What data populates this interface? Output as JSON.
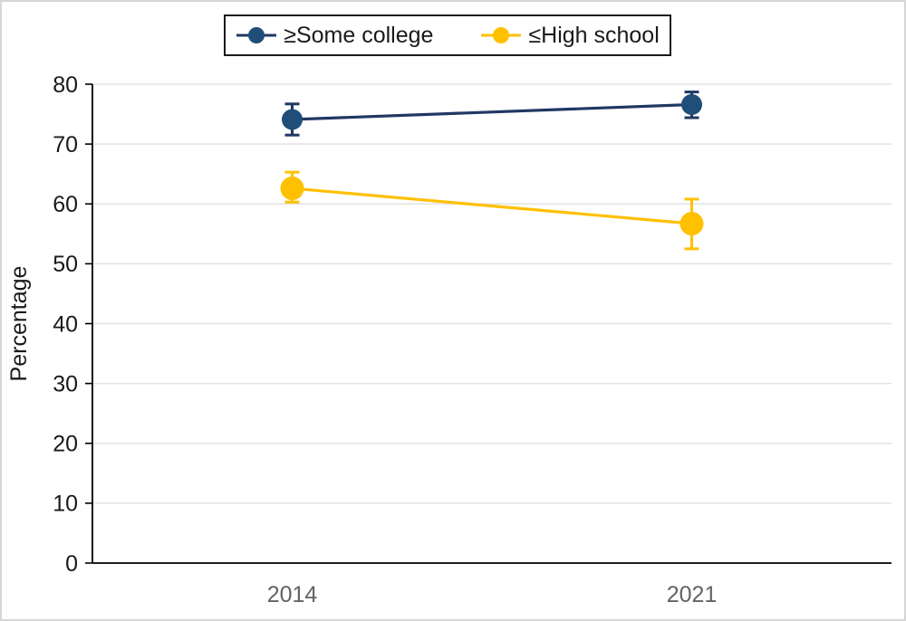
{
  "figure": {
    "background": "#ffffff",
    "border_color": "#d6d6d6"
  },
  "legend": {
    "position": "top",
    "border_color": "#1a1a1a",
    "text_color": "#1a1a1a"
  },
  "chart_data": {
    "type": "line",
    "title": "",
    "xlabel": "",
    "ylabel": "Percentage",
    "categories": [
      "2014",
      "2021"
    ],
    "series": [
      {
        "name": "≥Some college",
        "line_color": "#1f3864",
        "marker_color": "#1f4e79",
        "marker_radius": 11.5,
        "values": [
          74.1,
          76.6
        ],
        "err_low": [
          71.5,
          74.4
        ],
        "err_high": [
          76.7,
          78.7
        ]
      },
      {
        "name": "≤High school",
        "line_color": "#ffc000",
        "marker_color": "#ffc000",
        "marker_radius": 13,
        "values": [
          62.6,
          56.7
        ],
        "err_low": [
          60.3,
          52.5
        ],
        "err_high": [
          65.3,
          60.8
        ]
      }
    ],
    "ylim": [
      0,
      80
    ],
    "yticks": [
      0,
      10,
      20,
      30,
      40,
      50,
      60,
      70,
      80
    ],
    "grid": true,
    "legend_position": "top",
    "grid_color": "#e2e2e2",
    "axis_color": "#000000",
    "ytick_label_color": "#1a1a1a",
    "xtick_label_color": "#636363",
    "ylabel_color": "#1a1a1a"
  }
}
